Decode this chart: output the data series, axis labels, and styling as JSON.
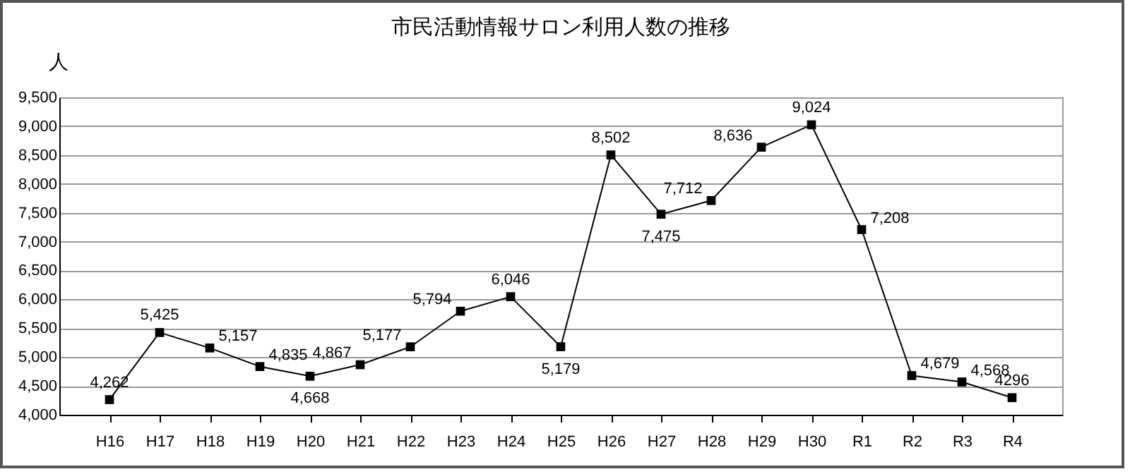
{
  "chart_data": {
    "type": "line",
    "title": "市民活動情報サロン利用人数の推移",
    "ylabel": "人",
    "categories": [
      "H16",
      "H17",
      "H18",
      "H19",
      "H20",
      "H21",
      "H22",
      "H23",
      "H24",
      "H25",
      "H26",
      "H27",
      "H28",
      "H29",
      "H30",
      "R1",
      "R2",
      "R3",
      "R4"
    ],
    "series": [
      {
        "color": "#000000",
        "values": [
          4262,
          5425,
          5157,
          4835,
          4668,
          4867,
          5177,
          5794,
          6046,
          5179,
          8502,
          7475,
          7712,
          8636,
          9024,
          7208,
          4679,
          4568,
          4296
        ],
        "value_labels": [
          "4,262",
          "5,425",
          "5,157",
          "4,835",
          "4,668",
          "4,867",
          "5,177",
          "5,794",
          "6,046",
          "5,179",
          "8,502",
          "7,475",
          "7,712",
          "8,636",
          "9,024",
          "7,208",
          "4,679",
          "4,568",
          "4296"
        ]
      }
    ],
    "ylim": [
      4000,
      9500
    ],
    "yticks": [
      {
        "value": 4000,
        "label": "4,000"
      },
      {
        "value": 4500,
        "label": "4,500"
      },
      {
        "value": 5000,
        "label": "5,000"
      },
      {
        "value": 5500,
        "label": "5,500"
      },
      {
        "value": 6000,
        "label": "6,000"
      },
      {
        "value": 6500,
        "label": "6,500"
      },
      {
        "value": 7000,
        "label": "7,000"
      },
      {
        "value": 7500,
        "label": "7,500"
      },
      {
        "value": 8000,
        "label": "8,000"
      },
      {
        "value": 8500,
        "label": "8,500"
      },
      {
        "value": 9000,
        "label": "9,000"
      },
      {
        "value": 9500,
        "label": "9,500"
      }
    ],
    "grid": "y",
    "marker": "square",
    "line_style": "solid"
  }
}
